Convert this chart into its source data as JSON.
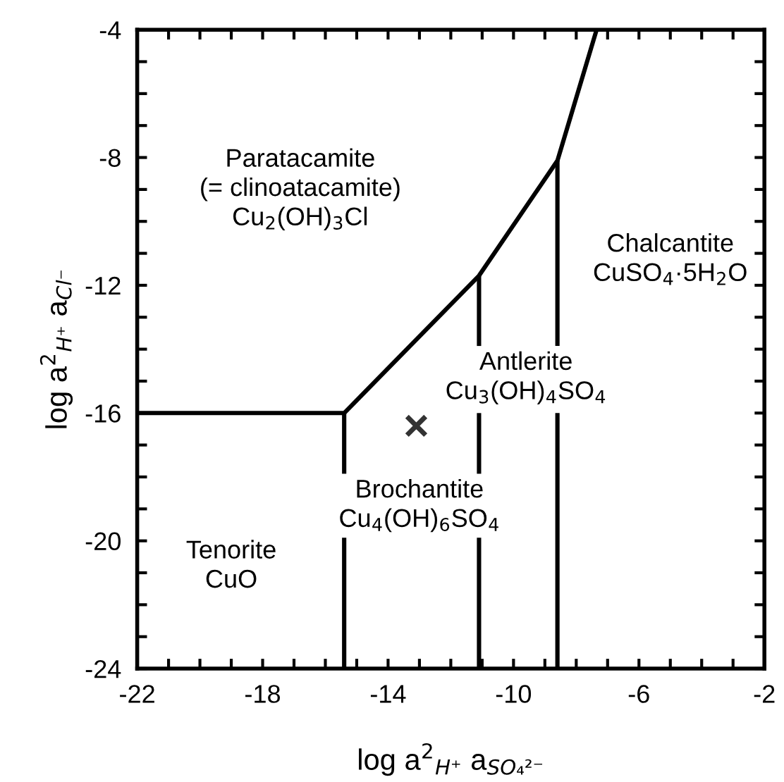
{
  "chart_data": {
    "type": "line",
    "xlabel": "log a$^{2}$$_{H⁺}$ a$_{SO₄²⁻}$",
    "ylabel": "log a$^{2}$$_{H⁺}$ a$_{Cl⁻}$",
    "xlim": [
      -22,
      -2
    ],
    "ylim": [
      -24,
      -4
    ],
    "xticks": [
      -22,
      {
        "value": -21,
        "label": null
      },
      {
        "value": -20,
        "label": null
      },
      {
        "value": -19,
        "label": null
      },
      -18,
      {
        "value": -17,
        "label": null
      },
      {
        "value": -16,
        "label": null
      },
      {
        "value": -15,
        "label": null
      },
      -14,
      {
        "value": -13,
        "label": null
      },
      {
        "value": -12,
        "label": null
      },
      {
        "value": -11,
        "label": null
      },
      -10,
      {
        "value": -9,
        "label": null
      },
      {
        "value": -8,
        "label": null
      },
      {
        "value": -7,
        "label": null
      },
      -6,
      {
        "value": -5,
        "label": null
      },
      {
        "value": -4,
        "label": null
      },
      {
        "value": -3,
        "label": null
      },
      -2
    ],
    "yticks": [
      -24,
      {
        "value": -23,
        "label": null
      },
      {
        "value": -22,
        "label": null
      },
      {
        "value": -21,
        "label": null
      },
      -20,
      {
        "value": -19,
        "label": null
      },
      {
        "value": -18,
        "label": null
      },
      {
        "value": -17,
        "label": null
      },
      -16,
      {
        "value": -15,
        "label": null
      },
      {
        "value": -14,
        "label": null
      },
      {
        "value": -13,
        "label": null
      },
      -12,
      {
        "value": -11,
        "label": null
      },
      {
        "value": -10,
        "label": null
      },
      {
        "value": -9,
        "label": null
      },
      -8,
      {
        "value": -7,
        "label": null
      },
      {
        "value": -6,
        "label": null
      },
      {
        "value": -5,
        "label": null
      },
      -4
    ],
    "grid": false,
    "legend": false,
    "series": [
      {
        "color": "#000000",
        "x": [
          -22,
          -15.4,
          -11.1,
          -8.6,
          -7.35
        ],
        "values": [
          -16,
          -16,
          -11.7,
          -8.1,
          -4
        ],
        "marker": "none",
        "line_style": "solid"
      },
      {
        "color": "#000000",
        "x": [
          -15.4,
          -15.4
        ],
        "values": [
          -16,
          -17.9
        ],
        "marker": "none",
        "line_style": "solid"
      },
      {
        "color": "#000000",
        "x": [
          -15.4,
          -15.4
        ],
        "values": [
          -19.9,
          -24
        ],
        "marker": "none",
        "line_style": "solid"
      },
      {
        "color": "#000000",
        "x": [
          -11.1,
          -11.1
        ],
        "values": [
          -11.7,
          -13.9
        ],
        "marker": "none",
        "line_style": "solid"
      },
      {
        "color": "#000000",
        "x": [
          -11.1,
          -11.1
        ],
        "values": [
          -16,
          -17.9
        ],
        "marker": "none",
        "line_style": "solid"
      },
      {
        "color": "#000000",
        "x": [
          -11.1,
          -11.1
        ],
        "values": [
          -19.9,
          -24
        ],
        "marker": "none",
        "line_style": "solid"
      },
      {
        "color": "#000000",
        "x": [
          -8.6,
          -8.6
        ],
        "values": [
          -8.1,
          -13.9
        ],
        "marker": "none",
        "line_style": "solid"
      },
      {
        "color": "#000000",
        "x": [
          -8.6,
          -8.6
        ],
        "values": [
          -16,
          -24
        ],
        "marker": "none",
        "line_style": "solid"
      },
      {
        "type": "scatter",
        "color": "#333333",
        "x": [
          -13.1
        ],
        "values": [
          -16.4
        ],
        "marker": "cross"
      }
    ],
    "annotations": [
      "Paratacamite\n(= clinoatacamite)\nCu$_{2}$(OH)$_{3}$Cl",
      "Chalcantite\nCuSO$_{4}$·5H$_{2}$O",
      "Antlerite\nCu$_{3}$(OH)$_{4}$SO$_{4}$",
      "Brochantite\nCu$_{4}$(OH)$_{6}$SO$_{4}$",
      "Tenorite\nCuO"
    ]
  }
}
